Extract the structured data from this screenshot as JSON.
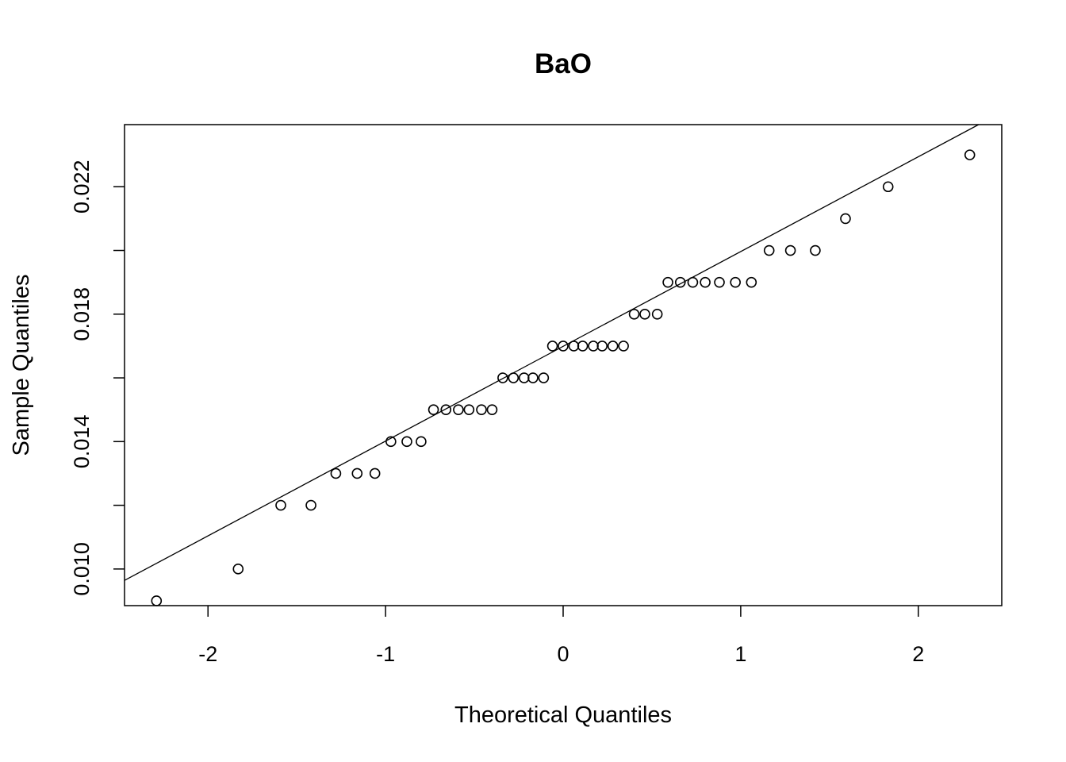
{
  "chart_data": {
    "type": "scatter",
    "title": "BaO",
    "xlabel": "Theoretical Quantiles",
    "ylabel": "Sample Quantiles",
    "xlim": [
      -2.47,
      2.47
    ],
    "ylim": [
      0.00885,
      0.02395
    ],
    "x_ticks": [
      -2,
      -1,
      0,
      1,
      2
    ],
    "x_tick_labels": [
      "-2",
      "-1",
      "0",
      "1",
      "2"
    ],
    "y_ticks": [
      0.01,
      0.012,
      0.014,
      0.016,
      0.018,
      0.02,
      0.022
    ],
    "y_tick_labels": [
      "0.010",
      "",
      "0.014",
      "",
      "0.018",
      "",
      "0.022"
    ],
    "grid": false,
    "legend": "none",
    "reference_line": {
      "slope": 0.002975,
      "intercept": 0.01699
    },
    "points": [
      [
        -2.29,
        0.009
      ],
      [
        -1.83,
        0.01
      ],
      [
        -1.59,
        0.012
      ],
      [
        -1.42,
        0.012
      ],
      [
        -1.28,
        0.013
      ],
      [
        -1.16,
        0.013
      ],
      [
        -1.06,
        0.013
      ],
      [
        -0.97,
        0.014
      ],
      [
        -0.88,
        0.014
      ],
      [
        -0.8,
        0.014
      ],
      [
        -0.73,
        0.015
      ],
      [
        -0.66,
        0.015
      ],
      [
        -0.59,
        0.015
      ],
      [
        -0.53,
        0.015
      ],
      [
        -0.46,
        0.015
      ],
      [
        -0.4,
        0.015
      ],
      [
        -0.34,
        0.016
      ],
      [
        -0.28,
        0.016
      ],
      [
        -0.22,
        0.016
      ],
      [
        -0.17,
        0.016
      ],
      [
        -0.11,
        0.016
      ],
      [
        -0.06,
        0.017
      ],
      [
        0.0,
        0.017
      ],
      [
        0.06,
        0.017
      ],
      [
        0.11,
        0.017
      ],
      [
        0.17,
        0.017
      ],
      [
        0.22,
        0.017
      ],
      [
        0.28,
        0.017
      ],
      [
        0.34,
        0.017
      ],
      [
        0.4,
        0.018
      ],
      [
        0.46,
        0.018
      ],
      [
        0.53,
        0.018
      ],
      [
        0.59,
        0.019
      ],
      [
        0.66,
        0.019
      ],
      [
        0.73,
        0.019
      ],
      [
        0.8,
        0.019
      ],
      [
        0.88,
        0.019
      ],
      [
        0.97,
        0.019
      ],
      [
        1.06,
        0.019
      ],
      [
        1.16,
        0.02
      ],
      [
        1.28,
        0.02
      ],
      [
        1.42,
        0.02
      ],
      [
        1.59,
        0.021
      ],
      [
        1.83,
        0.022
      ],
      [
        2.29,
        0.023
      ]
    ]
  }
}
